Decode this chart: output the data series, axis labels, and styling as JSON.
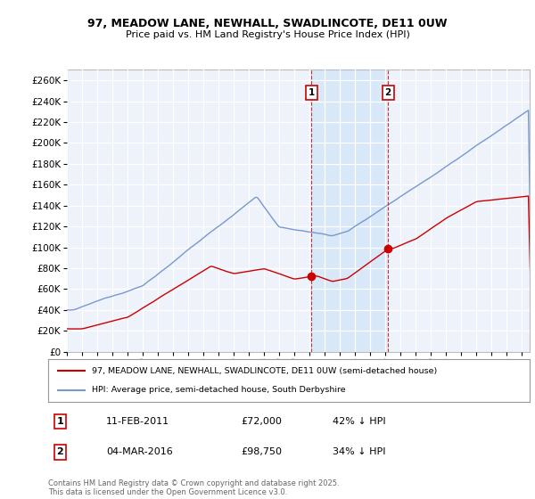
{
  "title_line1": "97, MEADOW LANE, NEWHALL, SWADLINCOTE, DE11 0UW",
  "title_line2": "Price paid vs. HM Land Registry's House Price Index (HPI)",
  "background_color": "#ffffff",
  "plot_bg_color": "#eef2fa",
  "grid_color": "#ffffff",
  "shade_color": "#d8e8f8",
  "sale1_date_num": 2011.11,
  "sale1_price": 72000,
  "sale1_label": "1",
  "sale1_text": "11-FEB-2011",
  "sale1_price_str": "£72,000",
  "sale1_pct": "42% ↓ HPI",
  "sale2_date_num": 2016.17,
  "sale2_price": 98750,
  "sale2_label": "2",
  "sale2_text": "04-MAR-2016",
  "sale2_price_str": "£98,750",
  "sale2_pct": "34% ↓ HPI",
  "legend_line1": "97, MEADOW LANE, NEWHALL, SWADLINCOTE, DE11 0UW (semi-detached house)",
  "legend_line2": "HPI: Average price, semi-detached house, South Derbyshire",
  "footer": "Contains HM Land Registry data © Crown copyright and database right 2025.\nThis data is licensed under the Open Government Licence v3.0.",
  "red_color": "#cc0000",
  "blue_color": "#7799cc",
  "ylim_max": 270000,
  "xmin": 1995.0,
  "xmax": 2025.5
}
